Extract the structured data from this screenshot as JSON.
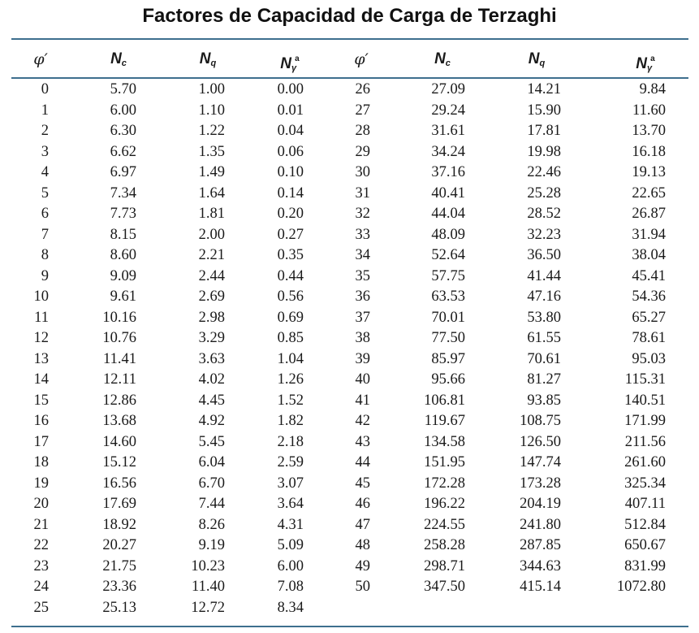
{
  "title": "Factores de Capacidad de Carga de Terzaghi",
  "headers": {
    "phi": "φ′",
    "nc_base": "N",
    "nc_sub": "c",
    "nq_base": "N",
    "nq_sub": "q",
    "ng_base": "N",
    "ng_sub": "γ",
    "ng_sup": "a"
  },
  "rows_left": [
    [
      "0",
      "5.70",
      "1.00",
      "0.00"
    ],
    [
      "1",
      "6.00",
      "1.10",
      "0.01"
    ],
    [
      "2",
      "6.30",
      "1.22",
      "0.04"
    ],
    [
      "3",
      "6.62",
      "1.35",
      "0.06"
    ],
    [
      "4",
      "6.97",
      "1.49",
      "0.10"
    ],
    [
      "5",
      "7.34",
      "1.64",
      "0.14"
    ],
    [
      "6",
      "7.73",
      "1.81",
      "0.20"
    ],
    [
      "7",
      "8.15",
      "2.00",
      "0.27"
    ],
    [
      "8",
      "8.60",
      "2.21",
      "0.35"
    ],
    [
      "9",
      "9.09",
      "2.44",
      "0.44"
    ],
    [
      "10",
      "9.61",
      "2.69",
      "0.56"
    ],
    [
      "11",
      "10.16",
      "2.98",
      "0.69"
    ],
    [
      "12",
      "10.76",
      "3.29",
      "0.85"
    ],
    [
      "13",
      "11.41",
      "3.63",
      "1.04"
    ],
    [
      "14",
      "12.11",
      "4.02",
      "1.26"
    ],
    [
      "15",
      "12.86",
      "4.45",
      "1.52"
    ],
    [
      "16",
      "13.68",
      "4.92",
      "1.82"
    ],
    [
      "17",
      "14.60",
      "5.45",
      "2.18"
    ],
    [
      "18",
      "15.12",
      "6.04",
      "2.59"
    ],
    [
      "19",
      "16.56",
      "6.70",
      "3.07"
    ],
    [
      "20",
      "17.69",
      "7.44",
      "3.64"
    ],
    [
      "21",
      "18.92",
      "8.26",
      "4.31"
    ],
    [
      "22",
      "20.27",
      "9.19",
      "5.09"
    ],
    [
      "23",
      "21.75",
      "10.23",
      "6.00"
    ],
    [
      "24",
      "23.36",
      "11.40",
      "7.08"
    ],
    [
      "25",
      "25.13",
      "12.72",
      "8.34"
    ]
  ],
  "rows_right": [
    [
      "26",
      "27.09",
      "14.21",
      "9.84"
    ],
    [
      "27",
      "29.24",
      "15.90",
      "11.60"
    ],
    [
      "28",
      "31.61",
      "17.81",
      "13.70"
    ],
    [
      "29",
      "34.24",
      "19.98",
      "16.18"
    ],
    [
      "30",
      "37.16",
      "22.46",
      "19.13"
    ],
    [
      "31",
      "40.41",
      "25.28",
      "22.65"
    ],
    [
      "32",
      "44.04",
      "28.52",
      "26.87"
    ],
    [
      "33",
      "48.09",
      "32.23",
      "31.94"
    ],
    [
      "34",
      "52.64",
      "36.50",
      "38.04"
    ],
    [
      "35",
      "57.75",
      "41.44",
      "45.41"
    ],
    [
      "36",
      "63.53",
      "47.16",
      "54.36"
    ],
    [
      "37",
      "70.01",
      "53.80",
      "65.27"
    ],
    [
      "38",
      "77.50",
      "61.55",
      "78.61"
    ],
    [
      "39",
      "85.97",
      "70.61",
      "95.03"
    ],
    [
      "40",
      "95.66",
      "81.27",
      "115.31"
    ],
    [
      "41",
      "106.81",
      "93.85",
      "140.51"
    ],
    [
      "42",
      "119.67",
      "108.75",
      "171.99"
    ],
    [
      "43",
      "134.58",
      "126.50",
      "211.56"
    ],
    [
      "44",
      "151.95",
      "147.74",
      "261.60"
    ],
    [
      "45",
      "172.28",
      "173.28",
      "325.34"
    ],
    [
      "46",
      "196.22",
      "204.19",
      "407.11"
    ],
    [
      "47",
      "224.55",
      "241.80",
      "512.84"
    ],
    [
      "48",
      "258.28",
      "287.85",
      "650.67"
    ],
    [
      "49",
      "298.71",
      "344.63",
      "831.99"
    ],
    [
      "50",
      "347.50",
      "415.14",
      "1072.80"
    ]
  ]
}
